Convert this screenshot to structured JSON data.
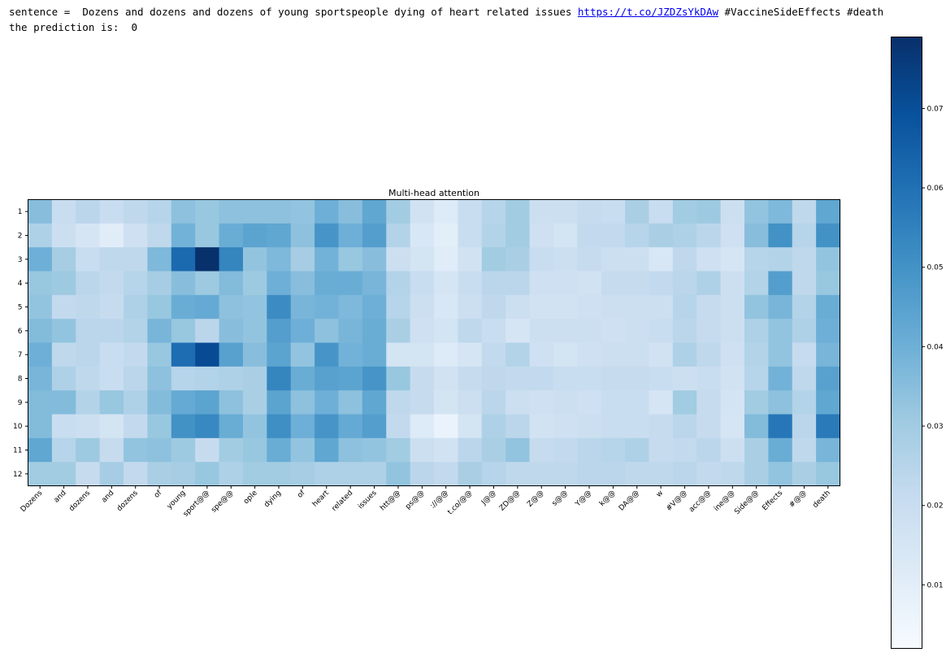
{
  "output": {
    "sentence_prefix": "sentence = ",
    "sentence_text": " Dozens and dozens and dozens of young sportspeople dying of heart related issues ",
    "sentence_link": "https://t.co/JZDZsYkDAw",
    "sentence_suffix": " #VaccineSideEffects #death",
    "prediction_line": "the prediction is:  0"
  },
  "colors": {
    "cmap_low": "#f7fbff",
    "cmap_high": "#08306b"
  },
  "chart_data": {
    "type": "heatmap",
    "title": "Multi-head attention",
    "x_labels": [
      "Dozens",
      "and",
      "dozens",
      "and",
      "dozens",
      "of",
      "young",
      "sport@@",
      "spe@@",
      "ople",
      "dying",
      "of",
      "heart",
      "related",
      "issues",
      "htt@@",
      "ps@@",
      "://@@",
      "t.co/@@",
      "J@@",
      "ZD@@",
      "Z@@",
      "s@@",
      "Y@@",
      "k@@",
      "DA@@",
      "w",
      "#V@@",
      "acc@@",
      "ine@@",
      "Side@@",
      "Effects",
      "#@@",
      "death"
    ],
    "y_labels": [
      "1",
      "2",
      "3",
      "4",
      "5",
      "6",
      "7",
      "8",
      "9",
      "10",
      "11",
      "12"
    ],
    "colorbar_ticks": [
      "0.01",
      "0.02",
      "0.03",
      "0.04",
      "0.05",
      "0.06",
      "0.07"
    ],
    "vmin": 0.002,
    "vmax": 0.079,
    "values": [
      [
        0.035,
        0.02,
        0.024,
        0.02,
        0.023,
        0.025,
        0.034,
        0.032,
        0.034,
        0.034,
        0.034,
        0.033,
        0.04,
        0.035,
        0.043,
        0.03,
        0.017,
        0.012,
        0.02,
        0.025,
        0.03,
        0.019,
        0.019,
        0.021,
        0.02,
        0.028,
        0.02,
        0.03,
        0.031,
        0.019,
        0.033,
        0.037,
        0.023,
        0.043
      ],
      [
        0.027,
        0.019,
        0.015,
        0.011,
        0.018,
        0.023,
        0.039,
        0.032,
        0.041,
        0.044,
        0.043,
        0.034,
        0.049,
        0.04,
        0.046,
        0.026,
        0.014,
        0.01,
        0.02,
        0.026,
        0.03,
        0.018,
        0.016,
        0.022,
        0.022,
        0.025,
        0.028,
        0.027,
        0.024,
        0.018,
        0.035,
        0.05,
        0.025,
        0.05
      ],
      [
        0.04,
        0.029,
        0.02,
        0.023,
        0.023,
        0.037,
        0.062,
        0.079,
        0.054,
        0.033,
        0.037,
        0.029,
        0.039,
        0.032,
        0.035,
        0.019,
        0.016,
        0.011,
        0.017,
        0.03,
        0.028,
        0.02,
        0.019,
        0.021,
        0.019,
        0.019,
        0.014,
        0.023,
        0.018,
        0.015,
        0.025,
        0.026,
        0.023,
        0.033
      ],
      [
        0.032,
        0.031,
        0.024,
        0.022,
        0.025,
        0.029,
        0.035,
        0.031,
        0.036,
        0.031,
        0.04,
        0.035,
        0.041,
        0.041,
        0.038,
        0.026,
        0.02,
        0.015,
        0.02,
        0.024,
        0.024,
        0.018,
        0.018,
        0.017,
        0.021,
        0.021,
        0.022,
        0.024,
        0.027,
        0.019,
        0.026,
        0.046,
        0.023,
        0.032
      ],
      [
        0.033,
        0.022,
        0.023,
        0.021,
        0.027,
        0.032,
        0.041,
        0.042,
        0.034,
        0.033,
        0.052,
        0.038,
        0.039,
        0.037,
        0.04,
        0.025,
        0.019,
        0.014,
        0.019,
        0.023,
        0.019,
        0.017,
        0.017,
        0.018,
        0.019,
        0.019,
        0.019,
        0.025,
        0.021,
        0.019,
        0.033,
        0.038,
        0.026,
        0.041
      ],
      [
        0.036,
        0.033,
        0.024,
        0.024,
        0.026,
        0.038,
        0.032,
        0.024,
        0.035,
        0.033,
        0.046,
        0.04,
        0.034,
        0.038,
        0.041,
        0.028,
        0.018,
        0.016,
        0.023,
        0.02,
        0.015,
        0.019,
        0.019,
        0.019,
        0.018,
        0.019,
        0.02,
        0.024,
        0.021,
        0.019,
        0.027,
        0.033,
        0.027,
        0.04
      ],
      [
        0.04,
        0.023,
        0.024,
        0.02,
        0.022,
        0.032,
        0.061,
        0.071,
        0.045,
        0.035,
        0.044,
        0.033,
        0.049,
        0.039,
        0.041,
        0.016,
        0.016,
        0.012,
        0.015,
        0.022,
        0.026,
        0.018,
        0.016,
        0.018,
        0.019,
        0.019,
        0.017,
        0.027,
        0.023,
        0.018,
        0.026,
        0.033,
        0.021,
        0.038
      ],
      [
        0.038,
        0.027,
        0.023,
        0.02,
        0.024,
        0.034,
        0.025,
        0.026,
        0.027,
        0.028,
        0.054,
        0.041,
        0.045,
        0.044,
        0.049,
        0.032,
        0.021,
        0.017,
        0.021,
        0.023,
        0.022,
        0.022,
        0.02,
        0.02,
        0.021,
        0.021,
        0.02,
        0.019,
        0.02,
        0.017,
        0.025,
        0.039,
        0.023,
        0.045
      ],
      [
        0.036,
        0.036,
        0.026,
        0.032,
        0.027,
        0.036,
        0.042,
        0.044,
        0.034,
        0.028,
        0.044,
        0.034,
        0.04,
        0.034,
        0.043,
        0.023,
        0.021,
        0.016,
        0.019,
        0.024,
        0.019,
        0.018,
        0.019,
        0.018,
        0.02,
        0.02,
        0.015,
        0.03,
        0.021,
        0.016,
        0.03,
        0.034,
        0.026,
        0.043
      ],
      [
        0.036,
        0.02,
        0.019,
        0.016,
        0.022,
        0.032,
        0.05,
        0.053,
        0.041,
        0.033,
        0.051,
        0.04,
        0.049,
        0.042,
        0.046,
        0.022,
        0.012,
        0.007,
        0.016,
        0.027,
        0.024,
        0.017,
        0.018,
        0.019,
        0.02,
        0.02,
        0.021,
        0.024,
        0.021,
        0.015,
        0.036,
        0.058,
        0.024,
        0.057
      ],
      [
        0.043,
        0.025,
        0.031,
        0.021,
        0.033,
        0.034,
        0.031,
        0.021,
        0.03,
        0.032,
        0.041,
        0.033,
        0.043,
        0.034,
        0.033,
        0.03,
        0.019,
        0.017,
        0.024,
        0.028,
        0.033,
        0.021,
        0.022,
        0.024,
        0.025,
        0.027,
        0.021,
        0.022,
        0.024,
        0.019,
        0.028,
        0.041,
        0.023,
        0.038
      ],
      [
        0.03,
        0.03,
        0.021,
        0.029,
        0.022,
        0.028,
        0.029,
        0.032,
        0.027,
        0.03,
        0.03,
        0.029,
        0.027,
        0.027,
        0.027,
        0.033,
        0.024,
        0.022,
        0.028,
        0.025,
        0.023,
        0.023,
        0.023,
        0.024,
        0.024,
        0.023,
        0.023,
        0.024,
        0.022,
        0.023,
        0.028,
        0.033,
        0.028,
        0.032
      ]
    ]
  }
}
